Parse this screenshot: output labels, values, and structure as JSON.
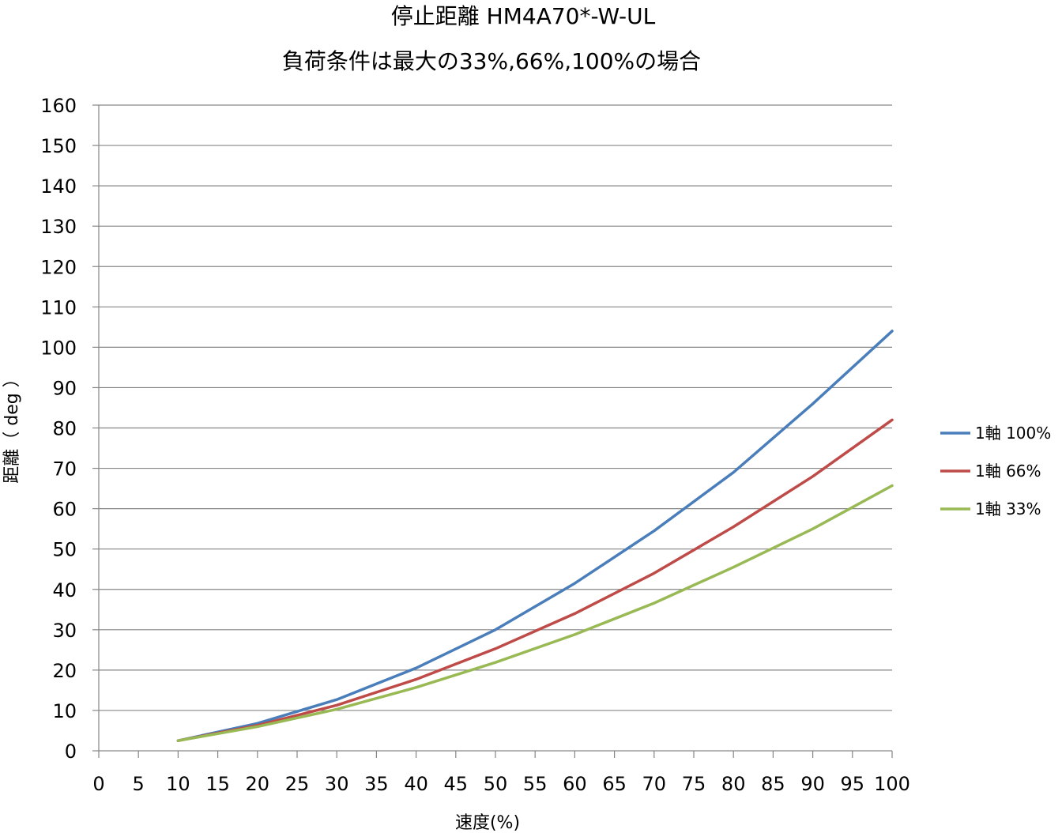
{
  "chart_data": {
    "type": "line",
    "title": "停止距離 HM4A70*-W-UL",
    "subtitle": "負荷条件は最大の33%,66%,100%の場合",
    "xlabel": "速度(%)",
    "ylabel": "距離（ deg ）",
    "xlim": [
      0,
      100
    ],
    "ylim": [
      0,
      160
    ],
    "x_ticks": [
      "0",
      "5",
      "10",
      "15",
      "20",
      "25",
      "30",
      "35",
      "40",
      "45",
      "50",
      "55",
      "60",
      "65",
      "70",
      "75",
      "80",
      "85",
      "90",
      "95",
      "100"
    ],
    "y_ticks": [
      "0",
      "10",
      "20",
      "30",
      "40",
      "50",
      "60",
      "70",
      "80",
      "90",
      "100",
      "110",
      "120",
      "130",
      "140",
      "150",
      "160"
    ],
    "grid": true,
    "legend_position": "right",
    "x": [
      10,
      20,
      30,
      40,
      50,
      60,
      70,
      80,
      90,
      100
    ],
    "series": [
      {
        "name": "1軸 100%",
        "color": "#4a7ebb",
        "values": [
          2.5,
          6.8,
          12.7,
          20.5,
          30.0,
          41.5,
          54.5,
          69.0,
          86.0,
          104.0
        ]
      },
      {
        "name": "1軸 66%",
        "color": "#be4b48",
        "values": [
          2.5,
          6.3,
          11.3,
          17.7,
          25.3,
          34.0,
          44.0,
          55.5,
          68.0,
          82.0
        ]
      },
      {
        "name": "1軸 33%",
        "color": "#98b954",
        "values": [
          2.5,
          6.0,
          10.3,
          15.7,
          21.9,
          28.8,
          36.6,
          45.5,
          55.0,
          65.7
        ]
      }
    ]
  }
}
